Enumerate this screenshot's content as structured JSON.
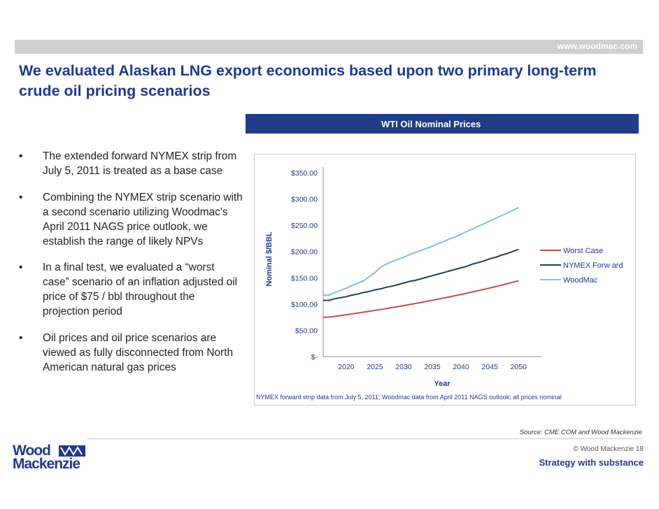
{
  "header": {
    "url": "www.woodmac.com"
  },
  "title": "We evaluated Alaskan LNG export economics based upon two primary long-term crude oil pricing scenarios",
  "chart_header": "WTI Oil Nominal Prices",
  "bullets": [
    "The extended forward NYMEX strip from July 5, 2011 is treated as a base case",
    "Combining the NYMEX strip scenario with a second scenario utilizing Woodmac’s April 2011 NAGS price outlook, we establish the range of likely NPVs",
    "In a final test, we evaluated a “worst case” scenario of an inflation adjusted oil price of $75 / bbl throughout the projection period",
    "Oil prices and oil price scenarios are viewed as fully disconnected from North American natural gas prices"
  ],
  "bullet_symbol": "•",
  "chart_data": {
    "type": "line",
    "title": "WTI Oil Nominal Prices",
    "xlabel": "Year",
    "ylabel": "Nominal $/BBL",
    "xlim": [
      2016,
      2054
    ],
    "ylim": [
      0,
      350
    ],
    "x_ticks": [
      2020,
      2025,
      2030,
      2035,
      2040,
      2045,
      2050
    ],
    "y_ticks": [
      0,
      50,
      100,
      150,
      200,
      250,
      300,
      350
    ],
    "y_tick_labels": [
      "$-",
      "$50.00",
      "$100.00",
      "$150.00",
      "$200.00",
      "$250.00",
      "$300.00",
      "$350.00"
    ],
    "legend_position": "right",
    "note": "NYMEX forward strip data from July 5, 2011; Woodmac data from April 2011 NAGS outlook; all prices nominal",
    "series": [
      {
        "name": "Worst Case",
        "color": "#c0504d",
        "x": [
          2016,
          2017,
          2018,
          2019,
          2020,
          2021,
          2022,
          2023,
          2024,
          2025,
          2026,
          2027,
          2028,
          2029,
          2030,
          2031,
          2032,
          2033,
          2034,
          2035,
          2036,
          2037,
          2038,
          2039,
          2040,
          2041,
          2042,
          2043,
          2044,
          2045,
          2046,
          2047,
          2048,
          2049,
          2050
        ],
        "values": [
          75.0,
          75.0,
          76.5,
          78.0,
          79.6,
          81.2,
          82.8,
          84.5,
          86.2,
          87.9,
          89.6,
          91.4,
          93.3,
          95.1,
          97.0,
          99.0,
          101.0,
          103.0,
          105.1,
          107.1,
          109.3,
          111.5,
          113.7,
          116.0,
          118.3,
          120.7,
          123.1,
          125.5,
          128.0,
          130.6,
          133.2,
          135.9,
          138.6,
          141.4,
          144.2
        ]
      },
      {
        "name": "NYMEX Forw ard",
        "color": "#1f3e5f",
        "x": [
          2016,
          2017,
          2018,
          2019,
          2020,
          2021,
          2022,
          2023,
          2024,
          2025,
          2026,
          2027,
          2028,
          2029,
          2030,
          2031,
          2032,
          2033,
          2034,
          2035,
          2036,
          2037,
          2038,
          2039,
          2040,
          2041,
          2042,
          2043,
          2044,
          2045,
          2046,
          2047,
          2048,
          2049,
          2050
        ],
        "values": [
          107,
          107,
          110,
          112,
          114,
          117,
          119,
          122,
          124,
          127,
          129,
          132,
          134,
          137,
          140,
          143,
          145,
          148,
          151,
          154,
          157,
          160,
          163,
          166,
          169,
          172,
          176,
          179,
          182,
          186,
          189,
          193,
          196,
          200,
          204
        ]
      },
      {
        "name": "WoodMac",
        "color": "#7ec0e3",
        "x": [
          2016,
          2017,
          2018,
          2019,
          2020,
          2021,
          2022,
          2023,
          2024,
          2025,
          2026,
          2027,
          2028,
          2029,
          2030,
          2031,
          2032,
          2033,
          2034,
          2035,
          2036,
          2037,
          2038,
          2039,
          2040,
          2041,
          2042,
          2043,
          2044,
          2045,
          2046,
          2047,
          2048,
          2049,
          2050
        ],
        "values": [
          117,
          117,
          122,
          126,
          130,
          135,
          140,
          144,
          152,
          160,
          170,
          176,
          181,
          185,
          189,
          194,
          198,
          202,
          206,
          210,
          215,
          219,
          224,
          228,
          233,
          238,
          243,
          248,
          253,
          258,
          263,
          268,
          273,
          278,
          284
        ]
      }
    ]
  },
  "source": "Source: CME.COM and Wood Mackenzie",
  "copyright": "© Wood Mackenzie  18",
  "tagline": "Strategy with substance",
  "logo": {
    "line1": "Wood",
    "line2": "Mackenzie"
  },
  "colors": {
    "brand": "#1f3a8a",
    "header_bar": "#1f3e87",
    "top_bar": "#cfcfcf"
  }
}
